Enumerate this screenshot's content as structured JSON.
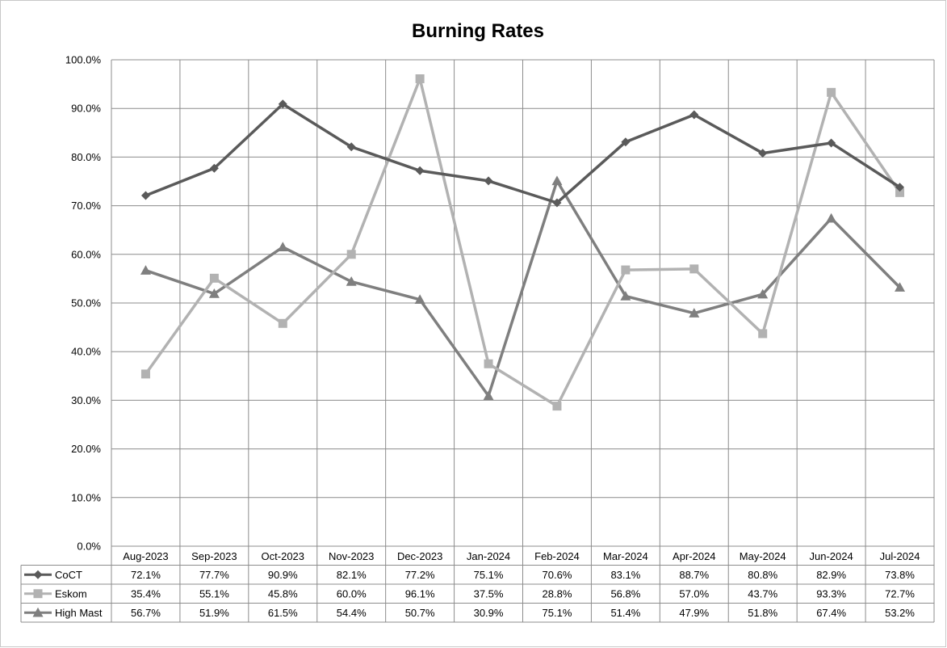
{
  "chart_data": {
    "type": "line",
    "title": "Burning Rates",
    "xlabel": "",
    "ylabel": "",
    "categories": [
      "Aug-2023",
      "Sep-2023",
      "Oct-2023",
      "Nov-2023",
      "Dec-2023",
      "Jan-2024",
      "Feb-2024",
      "Mar-2024",
      "Apr-2024",
      "May-2024",
      "Jun-2024",
      "Jul-2024"
    ],
    "ylim": [
      0,
      100
    ],
    "yticks": [
      "0.0%",
      "10.0%",
      "20.0%",
      "30.0%",
      "40.0%",
      "50.0%",
      "60.0%",
      "70.0%",
      "80.0%",
      "90.0%",
      "100.0%"
    ],
    "grid": true,
    "legend": "data table below chart",
    "series": [
      {
        "name": "CoCT",
        "marker": "diamond",
        "color": "#5a5a5a",
        "values": [
          72.1,
          77.7,
          90.9,
          82.1,
          77.2,
          75.1,
          70.6,
          83.1,
          88.7,
          80.8,
          82.9,
          73.8
        ],
        "labels": [
          "72.1%",
          "77.7%",
          "90.9%",
          "82.1%",
          "77.2%",
          "75.1%",
          "70.6%",
          "83.1%",
          "88.7%",
          "80.8%",
          "82.9%",
          "73.8%"
        ]
      },
      {
        "name": "Eskom",
        "marker": "square",
        "color": "#b2b2b2",
        "values": [
          35.4,
          55.1,
          45.8,
          60.0,
          96.1,
          37.5,
          28.8,
          56.8,
          57.0,
          43.7,
          93.3,
          72.7
        ],
        "labels": [
          "35.4%",
          "55.1%",
          "45.8%",
          "60.0%",
          "96.1%",
          "37.5%",
          "28.8%",
          "56.8%",
          "57.0%",
          "43.7%",
          "93.3%",
          "72.7%"
        ]
      },
      {
        "name": "High Mast",
        "marker": "triangle",
        "color": "#7f7f7f",
        "values": [
          56.7,
          51.9,
          61.5,
          54.4,
          50.7,
          30.9,
          75.1,
          51.4,
          47.9,
          51.8,
          67.4,
          53.2
        ],
        "labels": [
          "56.7%",
          "51.9%",
          "61.5%",
          "54.4%",
          "50.7%",
          "30.9%",
          "75.1%",
          "51.4%",
          "47.9%",
          "51.8%",
          "67.4%",
          "53.2%"
        ]
      }
    ]
  }
}
